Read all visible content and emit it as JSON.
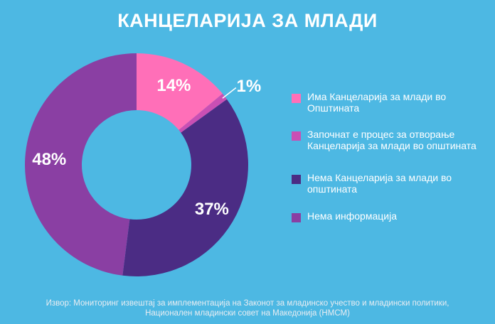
{
  "chart_data": {
    "type": "pie",
    "style": "donut",
    "title": "КАНЦЕЛАРИЈА ЗА МЛАДИ",
    "categories": [
      "Има Канцеларија за млади во Општината",
      "Започнат е процес за отворање Канцеларија за млади во општината",
      "Нема Канцеларија за млади во општината",
      "Нема информација"
    ],
    "values": [
      14,
      1,
      37,
      48
    ],
    "data_labels": [
      "14%",
      "1%",
      "37%",
      "48%"
    ],
    "colors": [
      "#ff6fb8",
      "#c94fb4",
      "#4b2c84",
      "#8a3fa3"
    ],
    "legend_position": "right",
    "source": "Извор: Мониторинг извештај за имплементација на Законот за младинско учество и младински политики, Национален младински совет на Македонија (НМСМ)"
  },
  "background_color": "#4db8e3",
  "text_color": "#ffffff"
}
